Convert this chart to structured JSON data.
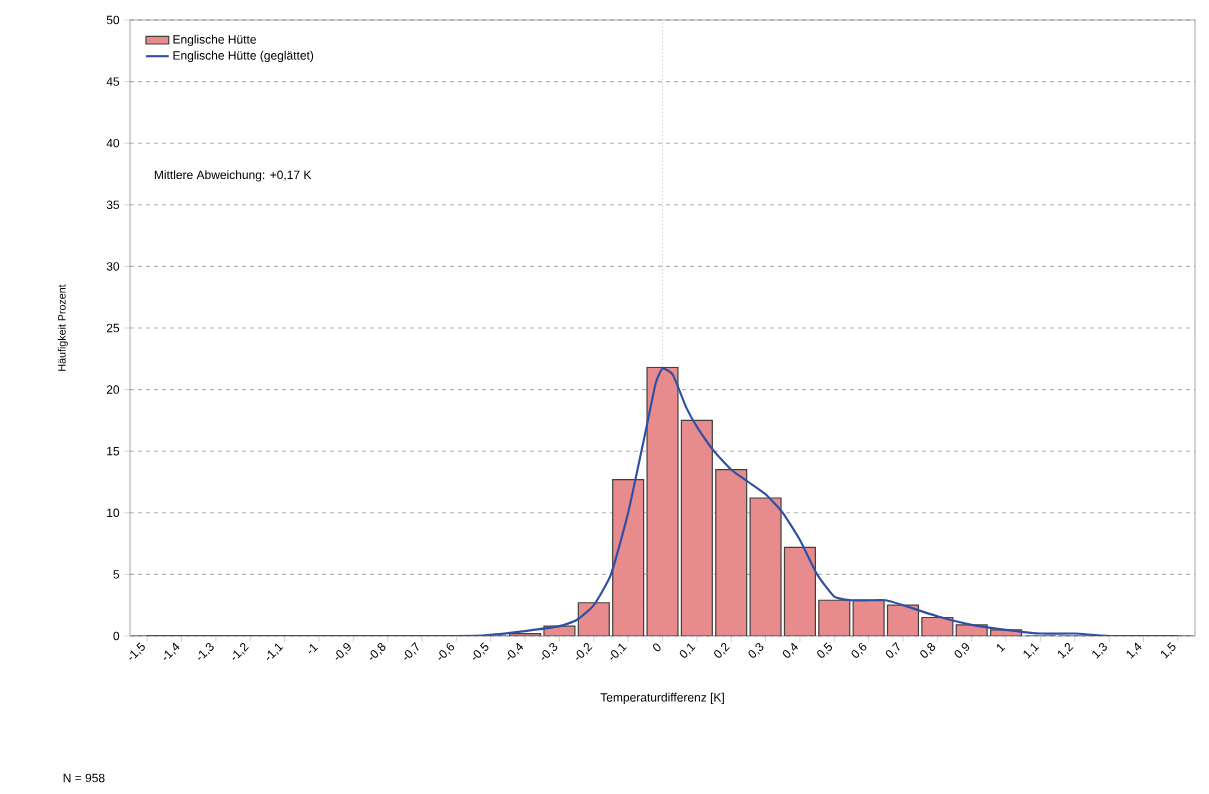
{
  "chart_data": {
    "type": "bar",
    "xlabel": "Temperaturdifferenz [K]",
    "ylabel": "Häufigkeit Prozent",
    "x": [
      -1.5,
      -1.4,
      -1.3,
      -1.2,
      -1.1,
      -1.0,
      -0.9,
      -0.8,
      -0.7,
      -0.6,
      -0.5,
      -0.4,
      -0.3,
      -0.2,
      -0.1,
      0,
      0.1,
      0.2,
      0.3,
      0.4,
      0.5,
      0.6,
      0.7,
      0.8,
      0.9,
      1.0,
      1.1,
      1.2,
      1.3,
      1.4,
      1.5
    ],
    "series": [
      {
        "name": "Englische Hütte",
        "color": "#e88b8d",
        "values": [
          0,
          0,
          0,
          0,
          0,
          0,
          0,
          0,
          0,
          0,
          0,
          0.2,
          0.8,
          2.7,
          12.7,
          21.8,
          17.5,
          13.5,
          11.2,
          7.2,
          2.9,
          2.9,
          2.5,
          1.5,
          0.9,
          0.5,
          0,
          0,
          0,
          0,
          0
        ]
      },
      {
        "name": "Englische Hütte (geglättet)",
        "type": "line",
        "color": "#2f4fa5",
        "x": [
          -1.5,
          -0.6,
          -0.5,
          -0.4,
          -0.3,
          -0.25,
          -0.2,
          -0.15,
          -0.1,
          -0.05,
          -0.02,
          0,
          0.03,
          0.07,
          0.1,
          0.15,
          0.2,
          0.25,
          0.3,
          0.35,
          0.4,
          0.45,
          0.5,
          0.55,
          0.6,
          0.65,
          0.7,
          0.8,
          0.9,
          1.0,
          1.1,
          1.2,
          1.3,
          1.5
        ],
        "values": [
          0,
          0,
          0.1,
          0.4,
          0.8,
          1.3,
          2.5,
          5,
          10,
          16.5,
          20.5,
          21.7,
          21.2,
          18.5,
          17,
          15,
          13.5,
          12.5,
          11.5,
          10,
          7.8,
          5,
          3.2,
          2.9,
          2.9,
          2.9,
          2.5,
          1.6,
          0.9,
          0.5,
          0.2,
          0.2,
          0,
          0
        ]
      }
    ],
    "xlim": [
      -1.55,
      1.55
    ],
    "ylim": [
      0,
      50
    ],
    "xticks": [
      {
        "value": -1.5,
        "label": "-1,5"
      },
      {
        "value": -1.4,
        "label": "-1,4"
      },
      {
        "value": -1.3,
        "label": "-1,3"
      },
      {
        "value": -1.2,
        "label": "-1,2"
      },
      {
        "value": -1.1,
        "label": "-1,1"
      },
      {
        "value": -1.0,
        "label": "-1"
      },
      {
        "value": -0.9,
        "label": "-0,9"
      },
      {
        "value": -0.8,
        "label": "-0,8"
      },
      {
        "value": -0.7,
        "label": "-0,7"
      },
      {
        "value": -0.6,
        "label": "-0,6"
      },
      {
        "value": -0.5,
        "label": "-0,5"
      },
      {
        "value": -0.4,
        "label": "-0,4"
      },
      {
        "value": -0.3,
        "label": "-0,3"
      },
      {
        "value": -0.2,
        "label": "-0,2"
      },
      {
        "value": -0.1,
        "label": "-0,1"
      },
      {
        "value": 0,
        "label": "0"
      },
      {
        "value": 0.1,
        "label": "0,1"
      },
      {
        "value": 0.2,
        "label": "0,2"
      },
      {
        "value": 0.3,
        "label": "0,3"
      },
      {
        "value": 0.4,
        "label": "0,4"
      },
      {
        "value": 0.5,
        "label": "0,5"
      },
      {
        "value": 0.6,
        "label": "0,6"
      },
      {
        "value": 0.7,
        "label": "0,7"
      },
      {
        "value": 0.8,
        "label": "0,8"
      },
      {
        "value": 0.9,
        "label": "0,9"
      },
      {
        "value": 1.0,
        "label": "1"
      },
      {
        "value": 1.1,
        "label": "1,1"
      },
      {
        "value": 1.2,
        "label": "1,2"
      },
      {
        "value": 1.3,
        "label": "1,3"
      },
      {
        "value": 1.4,
        "label": "1,4"
      },
      {
        "value": 1.5,
        "label": "1,5"
      }
    ],
    "yticks": [
      0,
      5,
      10,
      15,
      20,
      25,
      30,
      35,
      40,
      45,
      50
    ],
    "grid": "y",
    "legend": "top left",
    "ref_lines": [
      {
        "axis": "x",
        "value": 0,
        "line_style": "dotted"
      }
    ],
    "annotations": [
      "Mittlere Abweichung: +0,17 K",
      "N = 958"
    ]
  }
}
